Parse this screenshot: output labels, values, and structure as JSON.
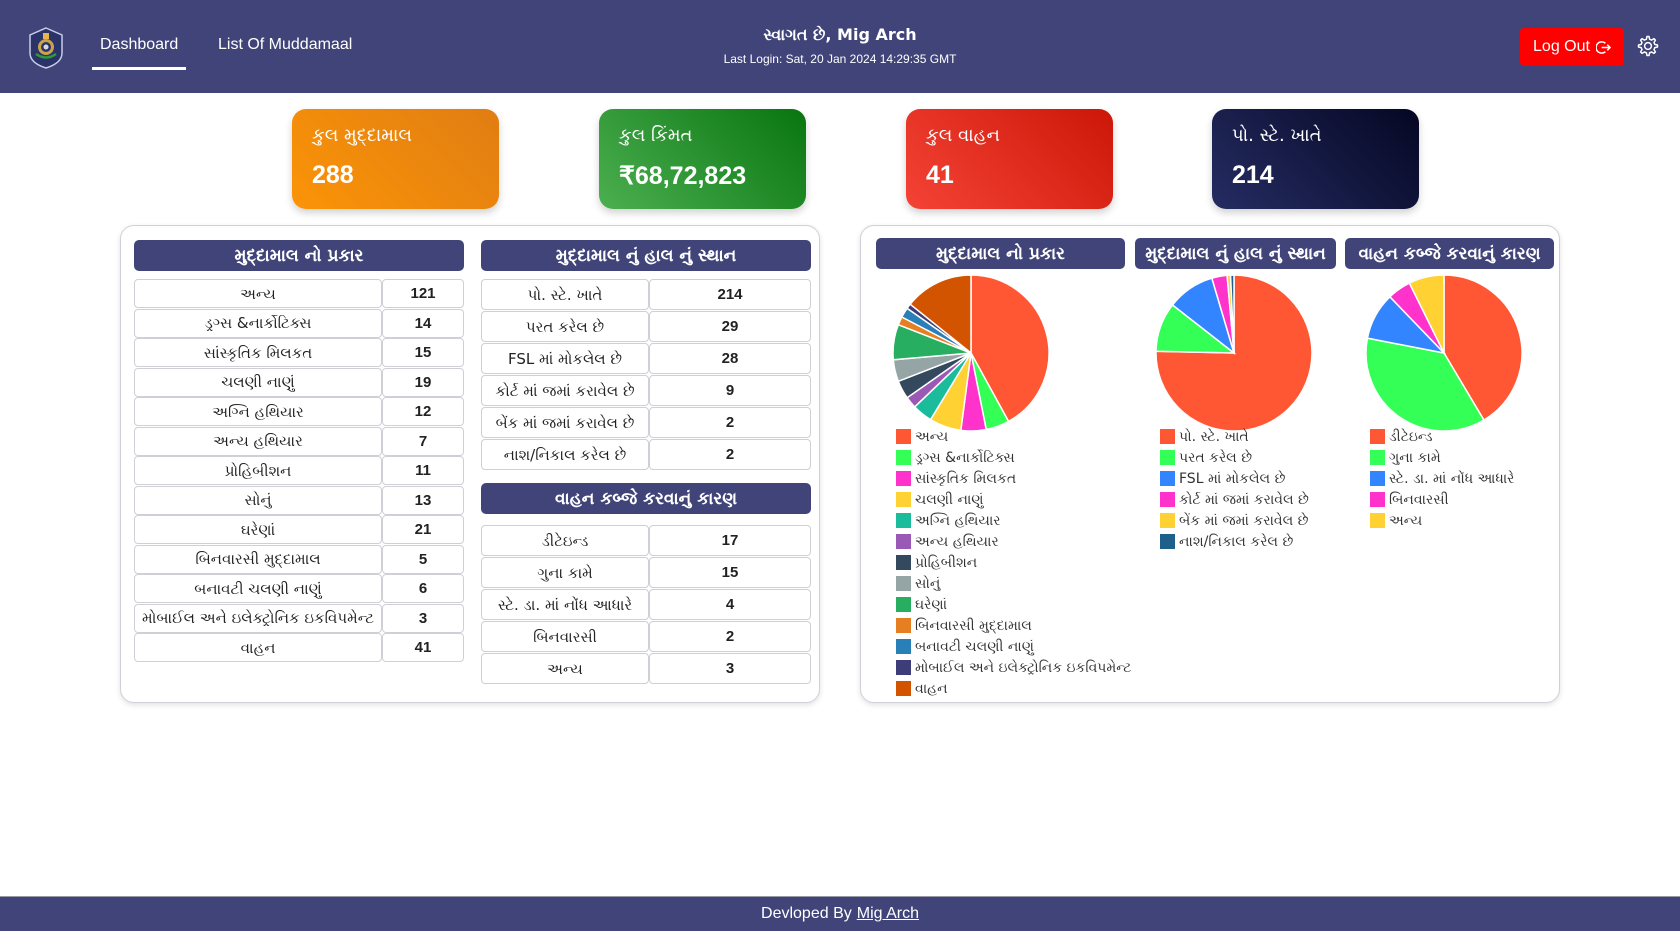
{
  "header": {
    "nav": [
      {
        "label": "Dashboard",
        "active": true
      },
      {
        "label": "List Of Muddamaal",
        "active": false
      }
    ],
    "welcome": "સ્વાગત છે, Mig Arch",
    "last_login": "Last Login: Sat, 20 Jan 2024 14:29:35 GMT",
    "logout_label": "Log Out",
    "logout_icon": "logout-icon",
    "settings_icon": "gear-icon",
    "colors": {
      "bar": "#404479",
      "logout": "#ff0000"
    }
  },
  "cards": [
    {
      "label": "કુલ મુદ્દામાલ",
      "value": "288"
    },
    {
      "label": "કુલ કિંમત",
      "value": "₹68,72,823"
    },
    {
      "label": "કુલ વાહન",
      "value": "41"
    },
    {
      "label": "પો. સ્ટે. ખાતે",
      "value": "214"
    }
  ],
  "tables": {
    "type": {
      "title": "મુદ્દામાલ નો પ્રકાર",
      "rows": [
        {
          "label": "અન્ય",
          "value": "121"
        },
        {
          "label": "ડ્રગ્સ &નાર્કોટિક્સ",
          "value": "14"
        },
        {
          "label": "સાંસ્કૃતિક મિલકત",
          "value": "15"
        },
        {
          "label": "ચલણી નાણું",
          "value": "19"
        },
        {
          "label": "અગ્નિ હથિયાર",
          "value": "12"
        },
        {
          "label": "અન્ય હથિયાર",
          "value": "7"
        },
        {
          "label": "પ્રોહિબીશન",
          "value": "11"
        },
        {
          "label": "સોનું",
          "value": "13"
        },
        {
          "label": "ઘરેણાં",
          "value": "21"
        },
        {
          "label": "બિનવારસી મુદ્દામાલ",
          "value": "5"
        },
        {
          "label": "બનાવટી ચલણી નાણું",
          "value": "6"
        },
        {
          "label": "મોબાઈલ અને ઇલેક્ટ્રોનિક ઇકવિપમેન્ટ",
          "value": "3"
        },
        {
          "label": "વાહન",
          "value": "41"
        }
      ]
    },
    "location": {
      "title": "મુદ્દામાલ નું હાલ નું સ્થાન",
      "rows": [
        {
          "label": "પો. સ્ટે. ખાતે",
          "value": "214"
        },
        {
          "label": "પરત કરેલ છે",
          "value": "29"
        },
        {
          "label": "FSL માં મોકલેલ છે",
          "value": "28"
        },
        {
          "label": "કોર્ટ માં જમાં કરાવેલ છે",
          "value": "9"
        },
        {
          "label": "બેંક માં જમાં કરાવેલ છે",
          "value": "2"
        },
        {
          "label": "નાશ/નિકાલ કરેલ છે",
          "value": "2"
        }
      ]
    },
    "vehicle": {
      "title": "વાહન કબ્જે કરવાનું કારણ",
      "rows": [
        {
          "label": "ડીટેઇન્ડ",
          "value": "17"
        },
        {
          "label": "ગુના કામે",
          "value": "15"
        },
        {
          "label": "સ્ટે. ડા. માં નોંધ આધારે",
          "value": "4"
        },
        {
          "label": "બિનવારસી",
          "value": "2"
        },
        {
          "label": "અન્ય",
          "value": "3"
        }
      ]
    }
  },
  "chart_data": [
    {
      "type": "pie",
      "title": "મુદ્દામાલ નો પ્રકાર",
      "legend_position": "bottom",
      "categories": [
        "અન્ય",
        "ડ્રગ્સ &નાર્કોટિક્સ",
        "સાંસ્કૃતિક મિલકત",
        "ચલણી નાણું",
        "અગ્નિ હથિયાર",
        "અન્ય હથિયાર",
        "પ્રોહિબીશન",
        "સોનું",
        "ઘરેણાં",
        "બિનવારસી મુદ્દામાલ",
        "બનાવટી ચલણી નાણું",
        "મોબાઈલ અને ઇલેક્ટ્રોનિક ઇકવિપમેન્ટ",
        "વાહન"
      ],
      "values": [
        121,
        14,
        15,
        19,
        12,
        7,
        11,
        13,
        21,
        5,
        6,
        3,
        41
      ],
      "colors": [
        "#ff5733",
        "#33ff57",
        "#ff33cc",
        "#ffd133",
        "#1abc9c",
        "#9b59b6",
        "#34495e",
        "#95a5a6",
        "#27ae60",
        "#e67e22",
        "#2980b9",
        "#3d3d7a",
        "#d35400"
      ]
    },
    {
      "type": "pie",
      "title": "મુદ્દામાલ નું હાલ નું સ્થાન",
      "legend_position": "bottom",
      "categories": [
        "પો. સ્ટે. ખાતે",
        "પરત કરેલ છે",
        "FSL માં મોકલેલ છે",
        "કોર્ટ માં જમાં કરાવેલ છે",
        "બેંક માં જમાં કરાવેલ છે",
        "નાશ/નિકાલ કરેલ છે"
      ],
      "values": [
        214,
        29,
        28,
        9,
        2,
        2
      ],
      "colors": [
        "#ff5733",
        "#33ff57",
        "#3385ff",
        "#ff33cc",
        "#ffd133",
        "#1f5f8b"
      ]
    },
    {
      "type": "pie",
      "title": "વાહન કબ્જે કરવાનું કારણ",
      "legend_position": "bottom",
      "categories": [
        "ડીટેઇન્ડ",
        "ગુના કામે",
        "સ્ટે. ડા. માં નોંધ આધારે",
        "બિનવારસી",
        "અન્ય"
      ],
      "values": [
        17,
        15,
        4,
        2,
        3
      ],
      "colors": [
        "#ff5733",
        "#33ff57",
        "#3385ff",
        "#ff33cc",
        "#ffd133"
      ]
    }
  ],
  "footer": {
    "prefix": "Devloped By",
    "link": "Mig Arch"
  }
}
